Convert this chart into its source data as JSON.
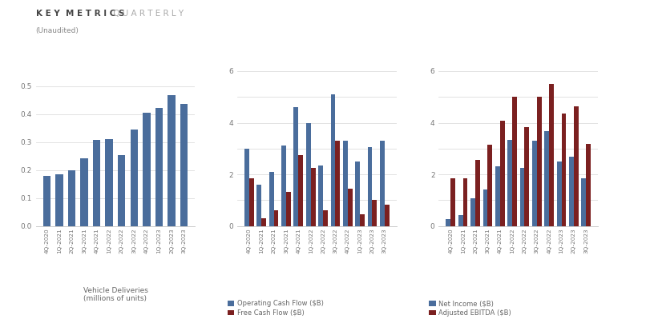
{
  "title_bold": "KEY METRICS",
  "title_light": " QUARTERLY",
  "subtitle": "(Unaudited)",
  "background_color": "#ffffff",
  "quarters": [
    "4Q-2020",
    "1Q-2021",
    "2Q-2021",
    "3Q-2021",
    "4Q-2021",
    "1Q-2022",
    "2Q-2022",
    "3Q-2022",
    "4Q-2022",
    "1Q-2023",
    "2Q-2023",
    "3Q-2023"
  ],
  "deliveries": [
    0.18,
    0.185,
    0.2,
    0.241,
    0.308,
    0.31,
    0.255,
    0.344,
    0.405,
    0.423,
    0.467,
    0.435
  ],
  "op_cash_flow": [
    3.0,
    1.6,
    2.1,
    3.13,
    4.6,
    4.0,
    2.35,
    5.1,
    3.3,
    2.5,
    3.05,
    3.3
  ],
  "free_cash_flow": [
    1.85,
    0.3,
    0.62,
    1.33,
    2.76,
    2.26,
    0.62,
    3.3,
    1.45,
    0.45,
    1.0,
    0.83
  ],
  "net_income": [
    0.27,
    0.44,
    1.07,
    1.43,
    2.32,
    3.32,
    2.26,
    3.29,
    3.69,
    2.51,
    2.7,
    1.85
  ],
  "adj_ebitda": [
    1.85,
    1.85,
    2.56,
    3.16,
    4.07,
    5.0,
    3.82,
    5.0,
    5.5,
    4.35,
    4.65,
    3.19
  ],
  "bar_color_blue": "#4a6d9c",
  "bar_color_red": "#7b2020",
  "legend_ocf": "Operating Cash Flow ($B)",
  "legend_fcf": "Free Cash Flow ($B)",
  "legend_ni": "Net Income ($B)",
  "legend_ebitda": "Adjusted EBITDA ($B)",
  "xlabel1": "Vehicle Deliveries\n(millions of units)",
  "ylim1": [
    0,
    0.6
  ],
  "ylim2": [
    0,
    6.5
  ],
  "ylim3": [
    0,
    6.5
  ],
  "yticks1": [
    0.0,
    0.1,
    0.2,
    0.3,
    0.4,
    0.5
  ],
  "yticks2": [
    0,
    2,
    4,
    6
  ],
  "yticks3": [
    0,
    2,
    4,
    6
  ],
  "ygrid2": [
    0,
    1,
    2,
    3,
    4,
    5,
    6
  ],
  "ygrid1": [
    0.0,
    0.1,
    0.2,
    0.3,
    0.4,
    0.5
  ]
}
